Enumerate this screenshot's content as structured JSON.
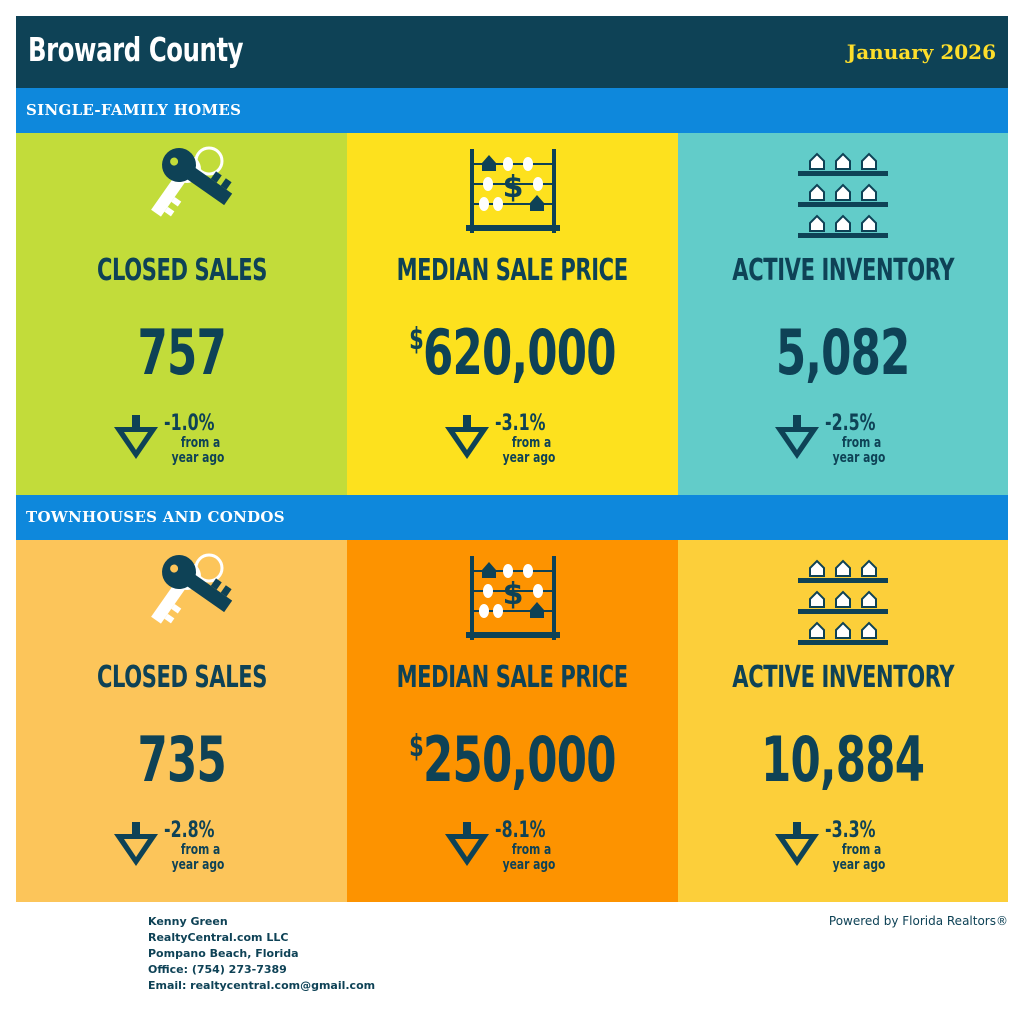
{
  "header": {
    "county": "Broward County",
    "month": "January 2026"
  },
  "colors": {
    "navy": "#0e4256",
    "band_blue": "#0e88dc",
    "month_yellow": "#fdde2b",
    "sf_closed": "#c2dc3a",
    "sf_price": "#fde11e",
    "sf_inventory": "#62ccc9",
    "tc_closed": "#fcc55a",
    "tc_price": "#fd9300",
    "tc_inventory": "#fccf3a"
  },
  "sections": [
    {
      "title": "SINGLE-FAMILY HOMES",
      "tiles": [
        {
          "icon": "keys-icon",
          "label": "CLOSED SALES",
          "value": "757",
          "currency": "",
          "change": "-1.0%",
          "from": "from a",
          "ago": "year ago"
        },
        {
          "icon": "abacus-icon",
          "label": "MEDIAN SALE PRICE",
          "value": "620,000",
          "currency": "$",
          "change": "-3.1%",
          "from": "from a",
          "ago": "year ago"
        },
        {
          "icon": "houses-shelf-icon",
          "label": "ACTIVE INVENTORY",
          "value": "5,082",
          "currency": "",
          "change": "-2.5%",
          "from": "from a",
          "ago": "year ago"
        }
      ]
    },
    {
      "title": "TOWNHOUSES AND CONDOS",
      "tiles": [
        {
          "icon": "keys-icon",
          "label": "CLOSED SALES",
          "value": "735",
          "currency": "",
          "change": "-2.8%",
          "from": "from a",
          "ago": "year ago"
        },
        {
          "icon": "abacus-icon",
          "label": "MEDIAN SALE PRICE",
          "value": "250,000",
          "currency": "$",
          "change": "-8.1%",
          "from": "from a",
          "ago": "year ago"
        },
        {
          "icon": "houses-shelf-icon",
          "label": "ACTIVE INVENTORY",
          "value": "10,884",
          "currency": "",
          "change": "-3.3%",
          "from": "from a",
          "ago": "year ago"
        }
      ]
    }
  ],
  "footer": {
    "name": "Kenny Green",
    "company": "RealtyCentral.com LLC",
    "location": "Pompano Beach, Florida",
    "office": "Office: (754) 273-7389",
    "email": "Email: realtycentral.com@gmail.com",
    "powered_by": "Powered by Florida Realtors®"
  }
}
